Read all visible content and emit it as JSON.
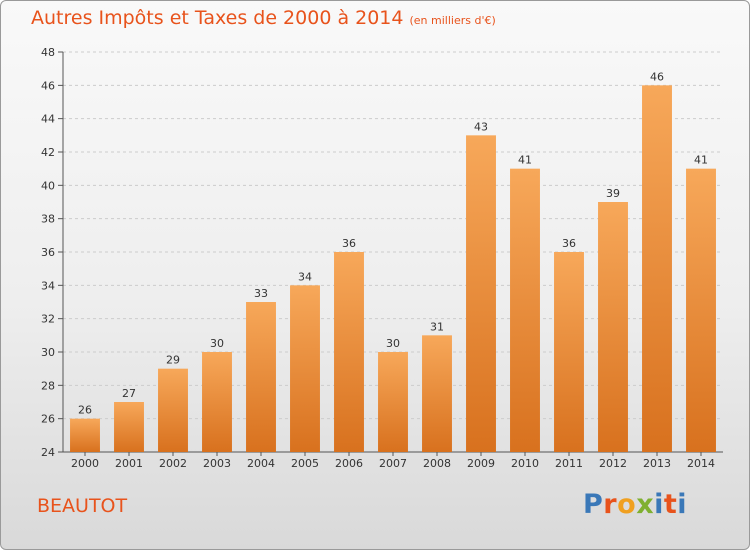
{
  "header": {
    "title": "Autres Impôts et Taxes de 2000 à 2014",
    "subtitle": "(en milliers d'€)"
  },
  "footer": {
    "commune": "BEAUTOT",
    "logo": [
      "P",
      "r",
      "o",
      "x",
      "i",
      "t",
      "i"
    ]
  },
  "colors": {
    "title": "#e8531c",
    "bar_top": "#f7a85a",
    "bar_bottom": "#d8711e",
    "grid": "#cccccc"
  },
  "chart_data": {
    "type": "bar",
    "title": "Autres Impôts et Taxes de 2000 à 2014",
    "subtitle": "(en milliers d'€)",
    "categories": [
      "2000",
      "2001",
      "2002",
      "2003",
      "2004",
      "2005",
      "2006",
      "2007",
      "2008",
      "2009",
      "2010",
      "2011",
      "2012",
      "2013",
      "2014"
    ],
    "values": [
      26,
      27,
      29,
      30,
      33,
      34,
      36,
      30,
      31,
      43,
      41,
      36,
      39,
      46,
      41
    ],
    "yticks": [
      24,
      26,
      28,
      30,
      32,
      34,
      36,
      38,
      40,
      42,
      44,
      46,
      48
    ],
    "ylim": [
      24,
      48
    ],
    "grid": "horizontal dashed",
    "legend": "none"
  }
}
